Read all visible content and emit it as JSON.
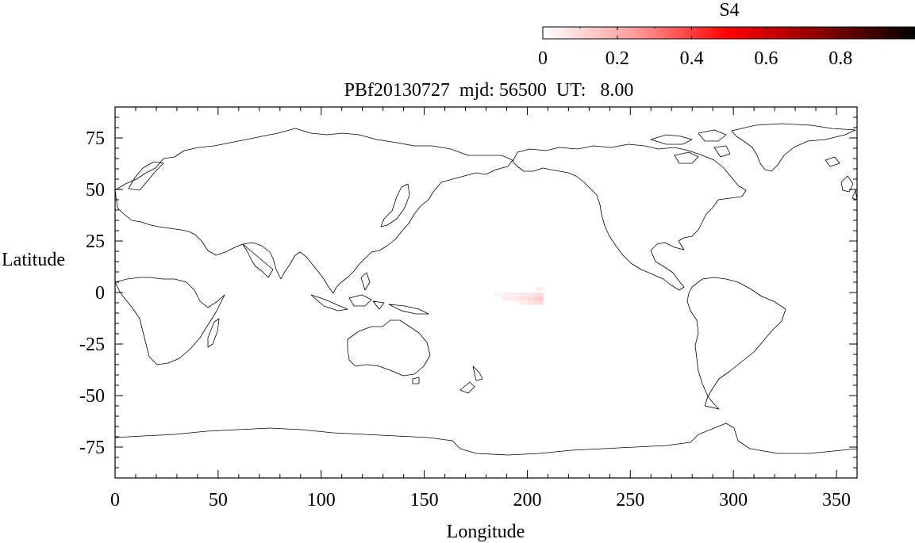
{
  "chart_data": {
    "type": "heatmap",
    "title": "PBf20130727  mjd: 56500  UT:   8.00",
    "xlabel": "Longitude",
    "ylabel": "Latitude",
    "xlim": [
      0,
      360
    ],
    "ylim": [
      -90,
      90
    ],
    "x_ticks": [
      0,
      50,
      100,
      150,
      200,
      250,
      300,
      350
    ],
    "y_ticks": [
      75,
      50,
      25,
      0,
      -25,
      -50,
      -75
    ],
    "x_tick_labels": [
      "0",
      "50",
      "100",
      "150",
      "200",
      "250",
      "300",
      "350"
    ],
    "y_tick_labels": [
      "75",
      "50",
      "25",
      "0",
      "-25",
      "-50",
      "-75"
    ],
    "background": "world coastline map (equirectangular, 0-360 longitude)",
    "colorbar": {
      "label": "S4",
      "range": [
        0,
        1
      ],
      "ticks": [
        0,
        0.2,
        0.4,
        0.6,
        0.8
      ],
      "tick_labels": [
        "0",
        "0.2",
        "0.4",
        "0.6",
        "0.8"
      ],
      "colors": [
        "#ffffff",
        "#ff9a9a",
        "#ff0000",
        "#8b0000",
        "#000000"
      ],
      "placement": "top-right"
    },
    "cells": [
      {
        "lon": 186,
        "lat": -1,
        "s4": 0.03
      },
      {
        "lon": 190,
        "lat": -1,
        "s4": 0.04
      },
      {
        "lon": 194,
        "lat": -1,
        "s4": 0.05
      },
      {
        "lon": 198,
        "lat": -1,
        "s4": 0.06
      },
      {
        "lon": 202,
        "lat": -1,
        "s4": 0.07
      },
      {
        "lon": 206,
        "lat": -1,
        "s4": 0.09
      },
      {
        "lon": 190,
        "lat": -3,
        "s4": 0.05
      },
      {
        "lon": 194,
        "lat": -3,
        "s4": 0.06
      },
      {
        "lon": 198,
        "lat": -3,
        "s4": 0.08
      },
      {
        "lon": 202,
        "lat": -3,
        "s4": 0.1
      },
      {
        "lon": 206,
        "lat": -3,
        "s4": 0.13
      },
      {
        "lon": 198,
        "lat": -5,
        "s4": 0.05
      },
      {
        "lon": 202,
        "lat": -5,
        "s4": 0.07
      },
      {
        "lon": 206,
        "lat": -5,
        "s4": 0.09
      },
      {
        "lon": 206,
        "lat": 2,
        "s4": 0.04
      }
    ]
  }
}
